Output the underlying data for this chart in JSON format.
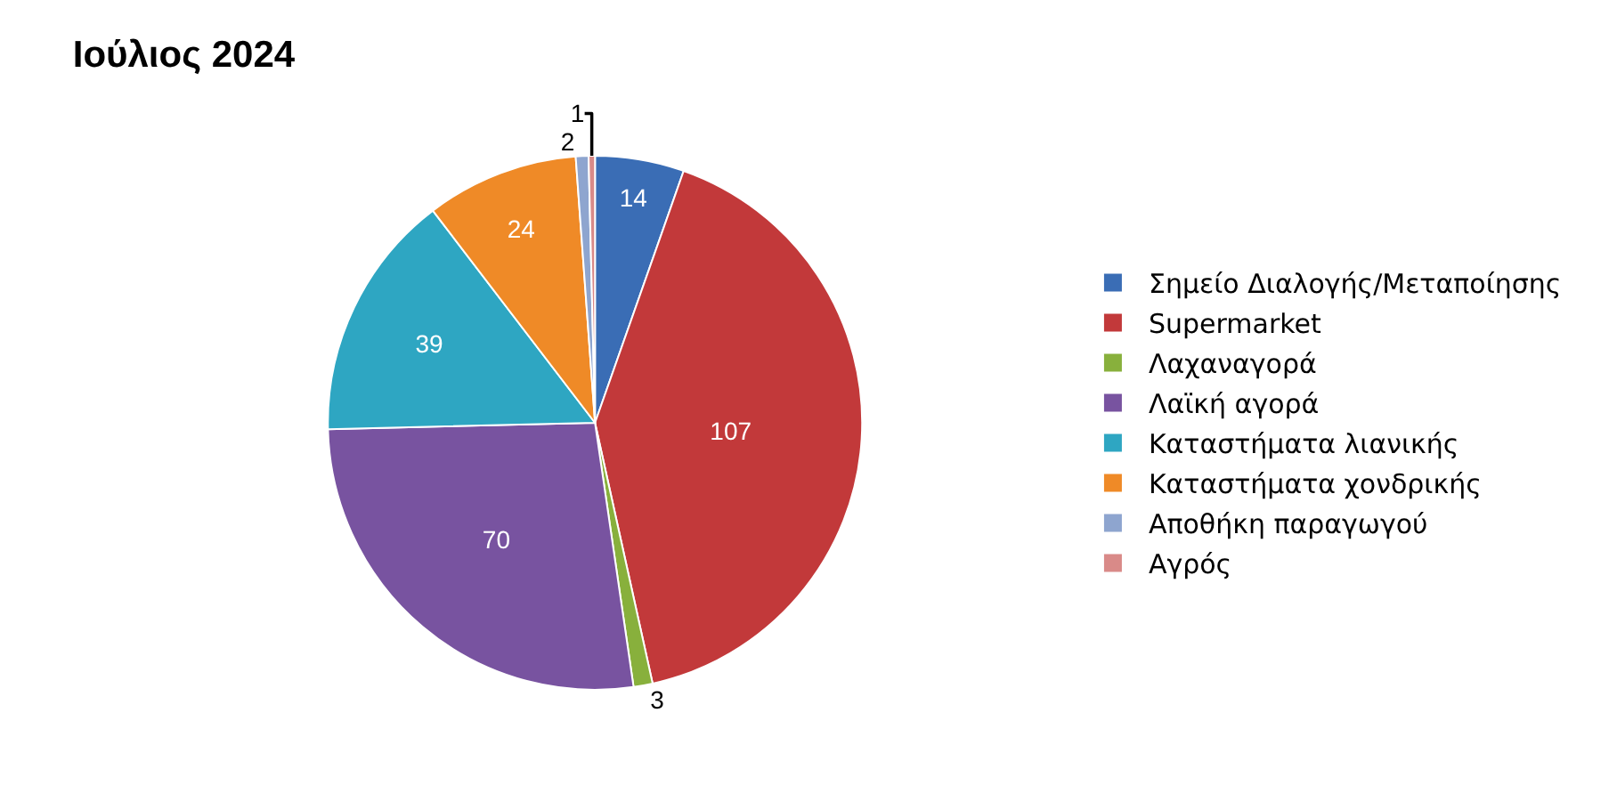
{
  "chart_data": {
    "type": "pie",
    "title": "Ιούλιος 2024",
    "categories": [
      "Σημείο Διαλογής/Μεταποίησης",
      "Supermarket",
      "Λαχαναγορά",
      "Λαϊκή αγορά",
      "Καταστήματα λιανικής",
      "Καταστήματα χονδρικής",
      "Αποθήκη παραγωγού",
      "Αγρός"
    ],
    "values": [
      14,
      107,
      3,
      70,
      39,
      24,
      2,
      1
    ],
    "colors": [
      "#3a6db5",
      "#c2393a",
      "#88b03c",
      "#7853a0",
      "#2ea6c2",
      "#ef8a27",
      "#8ea5cf",
      "#d98a88"
    ],
    "data_labels": true,
    "legend": "right"
  }
}
